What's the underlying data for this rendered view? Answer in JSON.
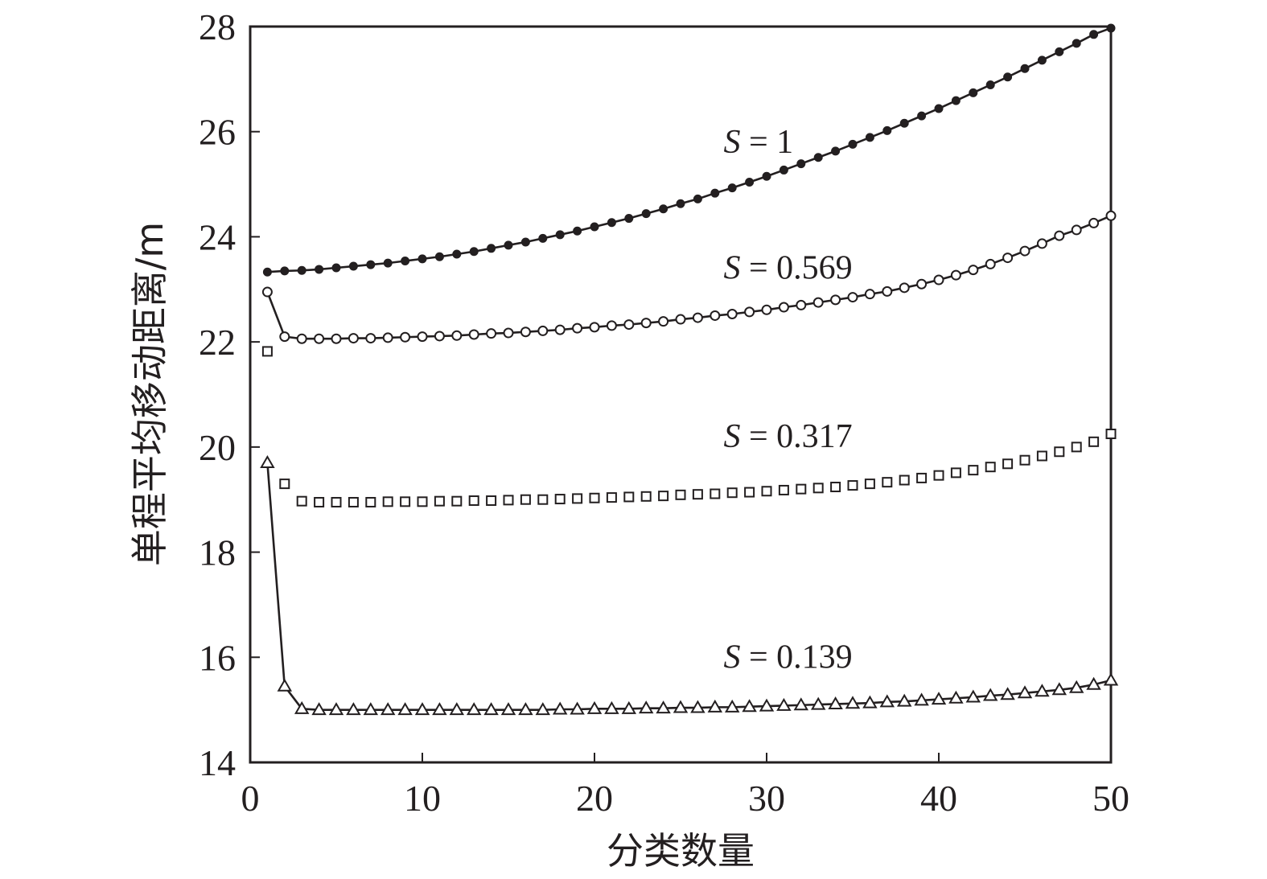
{
  "chart_data": {
    "type": "line",
    "xlabel": "分类数量",
    "ylabel": "单程平均移动距离/m",
    "xlim": [
      0,
      50
    ],
    "ylim": [
      14,
      28
    ],
    "xticks": [
      "0",
      "10",
      "20",
      "30",
      "40",
      "50"
    ],
    "yticks": [
      "14",
      "16",
      "18",
      "20",
      "22",
      "24",
      "26",
      "28"
    ],
    "grid": false,
    "legend": "none",
    "x": [
      1,
      2,
      3,
      4,
      5,
      6,
      7,
      8,
      9,
      10,
      11,
      12,
      13,
      14,
      15,
      16,
      17,
      18,
      19,
      20,
      21,
      22,
      23,
      24,
      25,
      26,
      27,
      28,
      29,
      30,
      31,
      32,
      33,
      34,
      35,
      36,
      37,
      38,
      39,
      40,
      41,
      42,
      43,
      44,
      45,
      46,
      47,
      48,
      49,
      50
    ],
    "series": [
      {
        "marker": "filled-circle",
        "line": true,
        "annotation": {
          "prefix": "S",
          "text": " = 1",
          "x": 27.5,
          "y": 25.6
        },
        "values": [
          23.33,
          23.35,
          23.36,
          23.38,
          23.41,
          23.44,
          23.47,
          23.5,
          23.54,
          23.58,
          23.62,
          23.67,
          23.72,
          23.78,
          23.84,
          23.9,
          23.97,
          24.04,
          24.11,
          24.19,
          24.27,
          24.35,
          24.44,
          24.53,
          24.63,
          24.72,
          24.83,
          24.93,
          25.04,
          25.15,
          25.27,
          25.39,
          25.51,
          25.63,
          25.76,
          25.89,
          26.02,
          26.16,
          26.3,
          26.44,
          26.59,
          26.74,
          26.89,
          27.04,
          27.2,
          27.36,
          27.52,
          27.68,
          27.85,
          27.97
        ]
      },
      {
        "marker": "open-circle",
        "line": true,
        "annotation": {
          "prefix": "S",
          "text": " = 0.569",
          "x": 27.5,
          "y": 23.2
        },
        "values": [
          22.95,
          22.1,
          22.06,
          22.06,
          22.06,
          22.07,
          22.07,
          22.08,
          22.09,
          22.1,
          22.11,
          22.12,
          22.14,
          22.16,
          22.17,
          22.19,
          22.21,
          22.23,
          22.26,
          22.28,
          22.31,
          22.33,
          22.36,
          22.39,
          22.43,
          22.46,
          22.5,
          22.53,
          22.57,
          22.61,
          22.66,
          22.7,
          22.75,
          22.8,
          22.85,
          22.91,
          22.96,
          23.03,
          23.1,
          23.18,
          23.27,
          23.37,
          23.48,
          23.6,
          23.73,
          23.87,
          24.02,
          24.13,
          24.26,
          24.4
        ]
      },
      {
        "marker": "open-square",
        "line": false,
        "annotation": {
          "prefix": "S",
          "text": " = 0.317",
          "x": 27.5,
          "y": 20.0
        },
        "values": [
          21.82,
          19.3,
          18.97,
          18.95,
          18.95,
          18.95,
          18.95,
          18.96,
          18.96,
          18.96,
          18.97,
          18.97,
          18.98,
          18.98,
          18.99,
          19.0,
          19.0,
          19.01,
          19.02,
          19.03,
          19.04,
          19.05,
          19.06,
          19.07,
          19.09,
          19.1,
          19.11,
          19.13,
          19.14,
          19.16,
          19.18,
          19.2,
          19.22,
          19.24,
          19.27,
          19.3,
          19.33,
          19.37,
          19.41,
          19.46,
          19.51,
          19.56,
          19.62,
          19.68,
          19.75,
          19.83,
          19.91,
          20.0,
          20.1,
          20.25
        ]
      },
      {
        "marker": "open-triangle",
        "line": true,
        "annotation": {
          "prefix": "S",
          "text": " = 0.139",
          "x": 27.5,
          "y": 15.8
        },
        "values": [
          19.7,
          15.45,
          15.02,
          15.0,
          15.0,
          15.0,
          15.0,
          15.0,
          15.0,
          15.0,
          15.0,
          15.0,
          15.0,
          15.0,
          15.0,
          15.0,
          15.0,
          15.01,
          15.01,
          15.02,
          15.02,
          15.02,
          15.03,
          15.03,
          15.04,
          15.04,
          15.05,
          15.05,
          15.06,
          15.07,
          15.08,
          15.09,
          15.1,
          15.11,
          15.12,
          15.13,
          15.15,
          15.16,
          15.18,
          15.2,
          15.22,
          15.24,
          15.27,
          15.29,
          15.32,
          15.35,
          15.38,
          15.42,
          15.48,
          15.56
        ]
      }
    ]
  }
}
